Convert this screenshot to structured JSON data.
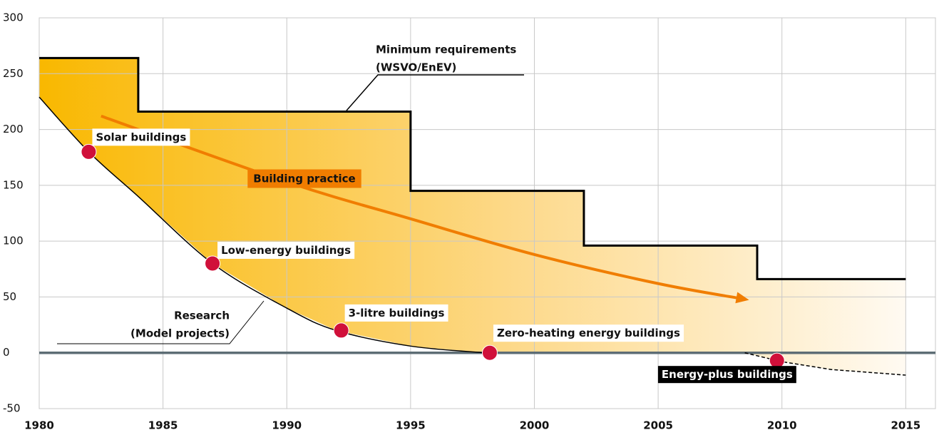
{
  "chart_data": {
    "type": "line",
    "xlim": [
      1980,
      2016.2
    ],
    "ylim": [
      -50,
      300
    ],
    "xticks": [
      1980,
      1985,
      1990,
      1995,
      2000,
      2005,
      2010,
      2015
    ],
    "yticks": [
      -50,
      0,
      50,
      100,
      150,
      200,
      250,
      300
    ],
    "grid": true,
    "series": [
      {
        "name": [
          "Minimum requirements",
          "(WSVO/EnEV)"
        ],
        "color": "#000000",
        "x": [
          1980,
          1984,
          1984,
          1995,
          1995,
          2002,
          2002,
          2009,
          2009,
          2015
        ],
        "values": [
          264,
          264,
          216,
          216,
          145,
          145,
          96,
          96,
          66,
          66
        ]
      },
      {
        "name": [
          "Research",
          "(Model projects)"
        ],
        "color": "#000000",
        "x": [
          1980,
          1982,
          1984,
          1987,
          1990,
          1992,
          1995,
          1998
        ],
        "values": [
          229,
          180,
          140,
          80,
          40,
          20,
          6,
          0
        ]
      },
      {
        "color": "#000000",
        "dashed": true,
        "x": [
          2008.5,
          2010,
          2012,
          2015
        ],
        "values": [
          0,
          -8,
          -15,
          -20
        ]
      },
      {
        "name": [
          "Building practice"
        ],
        "color": "#f07d00",
        "arrow": true,
        "x": [
          1982.5,
          1990,
          1995,
          2000,
          2005,
          2008.5
        ],
        "values": [
          212,
          153,
          120,
          88,
          62,
          48
        ]
      }
    ],
    "points": [
      {
        "label": "Solar buildings",
        "x": 1982,
        "value": 180
      },
      {
        "label": "Low-energy buildings",
        "x": 1987,
        "value": 80
      },
      {
        "label": "3-litre buildings",
        "x": 1992.2,
        "value": 20
      },
      {
        "label": "Zero-heating energy buildings",
        "x": 1998.2,
        "value": 0
      },
      {
        "label": "Energy-plus buildings",
        "x": 2009.8,
        "value": -7
      }
    ],
    "point_color": "#d0103a"
  }
}
